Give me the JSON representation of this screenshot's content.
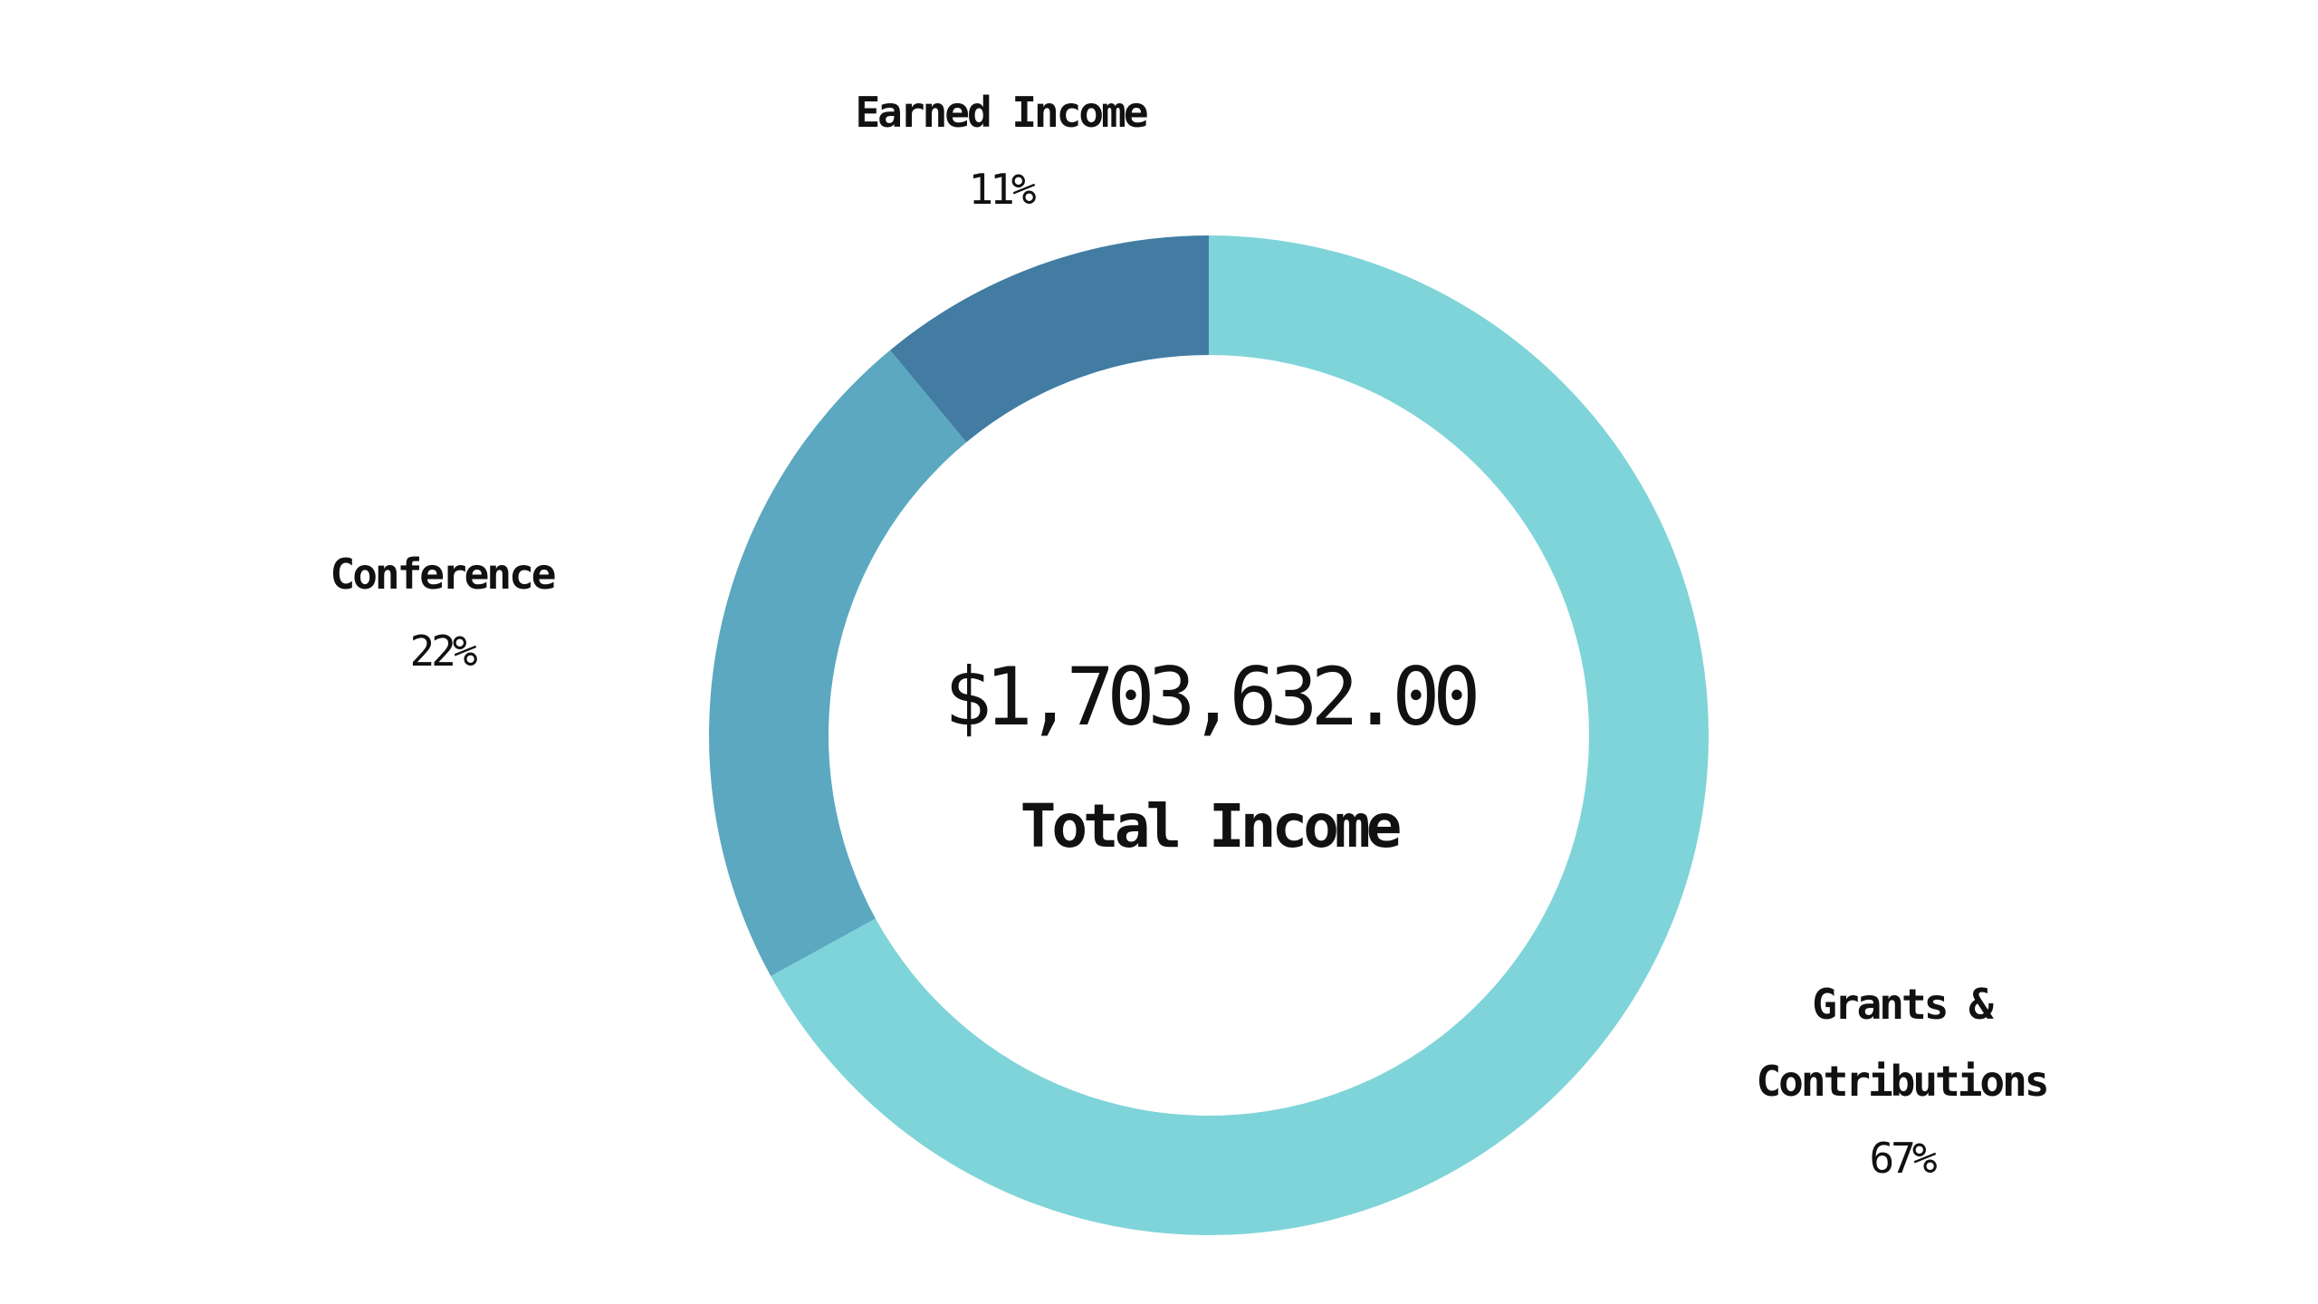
{
  "chart_data": {
    "type": "pie",
    "variant": "donut",
    "center_value": "$1,703,632.00",
    "center_label": "Total Income",
    "slices": [
      {
        "label": "Grants & Contributions",
        "label_lines": [
          "Grants &",
          "Contributions"
        ],
        "value": 67,
        "percent_label": "67%",
        "color": "#7fd4d9"
      },
      {
        "label": "Conference",
        "label_lines": [
          "Conference"
        ],
        "value": 22,
        "percent_label": "22%",
        "color": "#5ba8c0"
      },
      {
        "label": "Earned Income",
        "label_lines": [
          "Earned Income"
        ],
        "value": 11,
        "percent_label": "11%",
        "color": "#427ca2"
      }
    ]
  }
}
